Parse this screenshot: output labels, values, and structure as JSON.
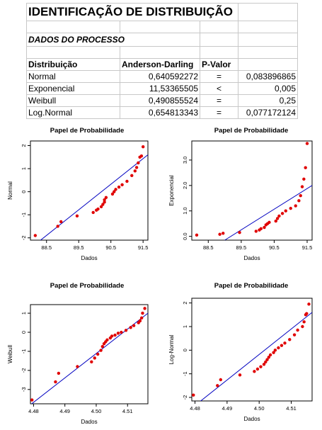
{
  "sheet": {
    "title": "IDENTIFICAÇÃO DE DISTRIBUIÇÃO",
    "subtitle": "DADOS DO PROCESSO",
    "headers": [
      "Distribuição",
      "Anderson-Darling",
      "P-Valor"
    ],
    "rows": [
      {
        "dist": "Normal",
        "ad": "0,640592272",
        "op": "=",
        "p": "0,083896865"
      },
      {
        "dist": "Exponencial",
        "ad": "11,53365505",
        "op": "<",
        "p": "0,005"
      },
      {
        "dist": "Weibull",
        "ad": "0,490855524",
        "op": "=",
        "p": "0,25"
      },
      {
        "dist": "Log.Normal",
        "ad": "0,654813343",
        "op": "=",
        "p": "0,077172124"
      }
    ]
  },
  "colors": {
    "points": "#e00000",
    "line": "#0000c0",
    "grid_border": "#c8c8c8"
  },
  "chart_data": [
    {
      "type": "scatter",
      "title": "Papel de Probabilidade",
      "xlabel": "Dados",
      "ylabel": "Normal",
      "xlim": [
        88.0,
        91.65
      ],
      "ylim": [
        -2.1,
        2.2
      ],
      "xticks": [
        "88.5",
        "89.5",
        "90.5",
        "91.5"
      ],
      "xtick_values": [
        88.5,
        89.5,
        90.5,
        91.5
      ],
      "yticks": [
        "-2",
        "-1",
        "0",
        "1",
        "2"
      ],
      "ytick_values": [
        -2,
        -1,
        0,
        1,
        2
      ],
      "line": {
        "x": [
          88.0,
          91.65
        ],
        "y": [
          -2.45,
          1.6
        ]
      },
      "points": {
        "x": [
          88.15,
          88.85,
          88.95,
          89.45,
          89.95,
          90.05,
          90.1,
          90.2,
          90.25,
          90.3,
          90.3,
          90.35,
          90.55,
          90.6,
          90.65,
          90.75,
          90.85,
          91.0,
          91.15,
          91.25,
          91.3,
          91.35,
          91.4,
          91.45,
          91.5
        ],
        "y": [
          -1.9,
          -1.5,
          -1.3,
          -1.05,
          -0.9,
          -0.8,
          -0.75,
          -0.65,
          -0.55,
          -0.45,
          -0.35,
          -0.25,
          -0.1,
          0.0,
          0.1,
          0.2,
          0.3,
          0.45,
          0.7,
          0.9,
          1.05,
          1.25,
          1.5,
          1.55,
          1.95
        ]
      }
    },
    {
      "type": "scatter",
      "title": "Papel de Probabilidade",
      "xlabel": "Dados",
      "ylabel": "Exponencial",
      "xlim": [
        88.0,
        91.65
      ],
      "ylim": [
        -0.15,
        3.75
      ],
      "xticks": [
        "88.5",
        "89.5",
        "90.5",
        "91.5"
      ],
      "xtick_values": [
        88.5,
        89.5,
        90.5,
        91.5
      ],
      "yticks": [
        "0.0",
        "1.0",
        "2.0",
        "3.0"
      ],
      "ytick_values": [
        0,
        1,
        2,
        3
      ],
      "line": {
        "x": [
          89.0,
          91.65
        ],
        "y": [
          -0.15,
          2.0
        ]
      },
      "points": {
        "x": [
          88.15,
          88.85,
          88.95,
          89.45,
          89.95,
          90.05,
          90.1,
          90.2,
          90.25,
          90.3,
          90.35,
          90.55,
          90.6,
          90.65,
          90.75,
          90.85,
          91.0,
          91.15,
          91.25,
          91.3,
          91.35,
          91.4,
          91.45,
          91.5
        ],
        "y": [
          0.05,
          0.08,
          0.12,
          0.15,
          0.2,
          0.25,
          0.3,
          0.35,
          0.45,
          0.5,
          0.55,
          0.6,
          0.7,
          0.8,
          0.9,
          1.0,
          1.1,
          1.2,
          1.4,
          1.6,
          1.95,
          2.25,
          2.7,
          3.65
        ]
      }
    },
    {
      "type": "scatter",
      "title": "Papel de Probabilidade",
      "xlabel": "Dados",
      "ylabel": "Weibull",
      "xlim": [
        4.479,
        4.5165
      ],
      "ylim": [
        -3.75,
        1.45
      ],
      "xticks": [
        "4.48",
        "4.49",
        "4.50",
        "4.51"
      ],
      "xtick_values": [
        4.48,
        4.49,
        4.5,
        4.51
      ],
      "yticks": [
        "-3",
        "-2",
        "-1",
        "0",
        "1"
      ],
      "ytick_values": [
        -3,
        -2,
        -1,
        0,
        1
      ],
      "line": {
        "x": [
          4.479,
          4.5165
        ],
        "y": [
          -3.8,
          1.0
        ]
      },
      "points": {
        "x": [
          4.4795,
          4.487,
          4.488,
          4.494,
          4.4985,
          4.4995,
          4.5005,
          4.5015,
          4.502,
          4.5025,
          4.503,
          4.5035,
          4.5045,
          4.505,
          4.506,
          4.507,
          4.508,
          4.5095,
          4.511,
          4.512,
          4.5135,
          4.514,
          4.5145,
          4.5148,
          4.5155
        ],
        "y": [
          -3.55,
          -2.6,
          -2.15,
          -1.8,
          -1.55,
          -1.35,
          -1.15,
          -0.95,
          -0.75,
          -0.6,
          -0.5,
          -0.4,
          -0.3,
          -0.2,
          -0.15,
          -0.05,
          0.0,
          0.1,
          0.25,
          0.35,
          0.5,
          0.6,
          0.75,
          1.0,
          1.25
        ]
      }
    },
    {
      "type": "scatter",
      "title": "Papel de Probabilidade",
      "xlabel": "Dados",
      "ylabel": "Log-Normal",
      "xlim": [
        4.479,
        4.5165
      ],
      "ylim": [
        -2.15,
        2.2
      ],
      "xticks": [
        "4.48",
        "4.49",
        "4.50",
        "4.51"
      ],
      "xtick_values": [
        4.48,
        4.49,
        4.5,
        4.51
      ],
      "yticks": [
        "-2",
        "-1",
        "0",
        "1",
        "2"
      ],
      "ytick_values": [
        -2,
        -1,
        0,
        1,
        2
      ],
      "line": {
        "x": [
          4.479,
          4.5165
        ],
        "y": [
          -2.45,
          1.6
        ]
      },
      "points": {
        "x": [
          4.4795,
          4.487,
          4.488,
          4.494,
          4.4985,
          4.4995,
          4.5005,
          4.5015,
          4.502,
          4.5025,
          4.503,
          4.5035,
          4.5045,
          4.505,
          4.506,
          4.507,
          4.508,
          4.5095,
          4.511,
          4.512,
          4.5135,
          4.514,
          4.5145,
          4.5148,
          4.5155
        ],
        "y": [
          -1.9,
          -1.5,
          -1.25,
          -1.05,
          -0.9,
          -0.8,
          -0.7,
          -0.6,
          -0.5,
          -0.4,
          -0.3,
          -0.2,
          -0.1,
          0.0,
          0.1,
          0.2,
          0.3,
          0.45,
          0.65,
          0.85,
          1.0,
          1.2,
          1.5,
          1.55,
          1.95
        ]
      }
    }
  ]
}
